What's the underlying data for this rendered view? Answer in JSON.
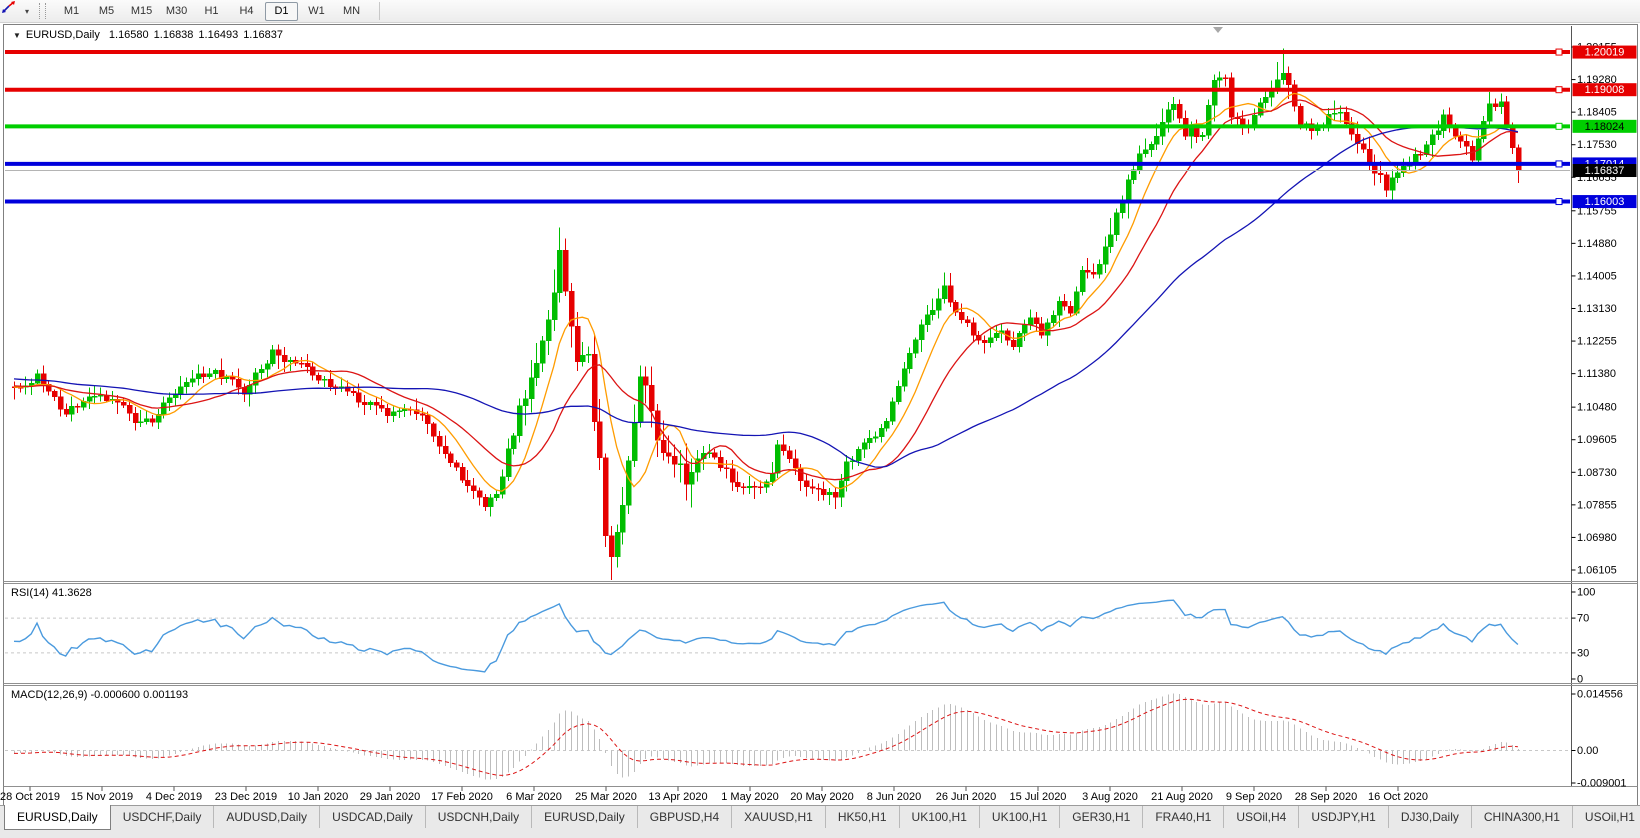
{
  "colors": {
    "bull": "#00bd00",
    "bear": "#e60000",
    "ma_fast": "#ff9c00",
    "ma_mid": "#dc1414",
    "ma_slow": "#1414b4",
    "level_red": "#e60000",
    "level_green": "#00ce00",
    "level_blue": "#0000dc",
    "current_line": "#b4b4b4",
    "current_badge": "#000000",
    "rsi_line": "#4a9ade",
    "macd_hist": "#bdbdbd",
    "macd_signal": "#dc1414",
    "dashed_level": "#c8c8c8",
    "axis_line": "#555555",
    "axis_text": "#000000",
    "window_border": "#808080"
  },
  "toolbar": {
    "tool_icon": "chart-cursor",
    "dropdown_icon": "▾",
    "timeframes": [
      "M1",
      "M5",
      "M15",
      "M30",
      "H1",
      "H4",
      "D1",
      "W1",
      "MN"
    ],
    "active_timeframe": "D1"
  },
  "chart_header": {
    "collapse_icon": "▼",
    "symbol": "EURUSD,Daily",
    "open": "1.16580",
    "high": "1.16838",
    "low": "1.16493",
    "close": "1.16837"
  },
  "price_axis": {
    "ticks": [
      "1.20155",
      "1.19280",
      "1.18405",
      "1.17530",
      "1.16655",
      "1.15755",
      "1.14880",
      "1.14005",
      "1.13130",
      "1.12255",
      "1.11380",
      "1.10480",
      "1.09605",
      "1.08730",
      "1.07855",
      "1.06980",
      "1.06105"
    ],
    "top_price": 1.20155,
    "bottom_price": 1.06105
  },
  "levels": [
    {
      "label": "1.20019",
      "price": 1.20019,
      "color_key": "level_red",
      "text_color": "#ffffff"
    },
    {
      "label": "1.19008",
      "price": 1.19008,
      "color_key": "level_red",
      "text_color": "#ffffff"
    },
    {
      "label": "1.18024",
      "price": 1.18024,
      "color_key": "level_green",
      "text_color": "#000000"
    },
    {
      "label": "1.17014",
      "price": 1.17014,
      "color_key": "level_blue",
      "text_color": "#ffffff"
    },
    {
      "label": "1.16003",
      "price": 1.16003,
      "color_key": "level_blue",
      "text_color": "#ffffff"
    }
  ],
  "current_price": {
    "label": "1.16837",
    "price": 1.16837
  },
  "rsi_pane": {
    "name": "RSI(14)",
    "value": "41.3628",
    "period": 14,
    "scale": [
      "100",
      "70",
      "30",
      "0"
    ],
    "scale_values": [
      100,
      70,
      30,
      0
    ],
    "dashed_levels": [
      70,
      30
    ]
  },
  "macd_pane": {
    "name": "MACD(12,26,9)",
    "values": "-0.000600 0.001193",
    "fast": 12,
    "slow": 26,
    "signal": 9,
    "scale": [
      "0.014556",
      "0.00",
      "-0.009001"
    ],
    "scale_numbers": [
      0.014556,
      0,
      -0.009001
    ]
  },
  "date_axis": [
    "28 Oct 2019",
    "15 Nov 2019",
    "4 Dec 2019",
    "23 Dec 2019",
    "10 Jan 2020",
    "29 Jan 2020",
    "17 Feb 2020",
    "6 Mar 2020",
    "25 Mar 2020",
    "13 Apr 2020",
    "1 May 2020",
    "20 May 2020",
    "8 Jun 2020",
    "26 Jun 2020",
    "15 Jul 2020",
    "3 Aug 2020",
    "21 Aug 2020",
    "9 Sep 2020",
    "28 Sep 2020",
    "16 Oct 2020"
  ],
  "chart_data": {
    "type": "candlestick",
    "symbol": "EURUSD",
    "timeframe": "Daily",
    "title": "EURUSD,Daily 1.16580 1.16838 1.16493 1.16837",
    "x_range": [
      "28 Oct 2019",
      "28 Oct 2020"
    ],
    "y_range": [
      1.06105,
      1.20155
    ],
    "candle_count": 263,
    "close_anchors": [
      [
        0,
        1.1095
      ],
      [
        4,
        1.1128
      ],
      [
        9,
        1.1032
      ],
      [
        13,
        1.1068
      ],
      [
        17,
        1.1078
      ],
      [
        21,
        1.1008
      ],
      [
        24,
        1.1016
      ],
      [
        27,
        1.1078
      ],
      [
        31,
        1.1132
      ],
      [
        35,
        1.1143
      ],
      [
        38,
        1.1118
      ],
      [
        40,
        1.109
      ],
      [
        44,
        1.1176
      ],
      [
        45,
        1.121
      ],
      [
        47,
        1.1172
      ],
      [
        50,
        1.116
      ],
      [
        53,
        1.1128
      ],
      [
        57,
        1.1098
      ],
      [
        61,
        1.1062
      ],
      [
        65,
        1.1024
      ],
      [
        69,
        1.1046
      ],
      [
        72,
        1.1002
      ],
      [
        75,
        1.0918
      ],
      [
        79,
        1.0842
      ],
      [
        82,
        1.079
      ],
      [
        84,
        1.0806
      ],
      [
        86,
        1.0928
      ],
      [
        88,
        1.1032
      ],
      [
        90,
        1.1135
      ],
      [
        93,
        1.1285
      ],
      [
        95,
        1.1448
      ],
      [
        96,
        1.1352
      ],
      [
        98,
        1.1186
      ],
      [
        100,
        1.1178
      ],
      [
        101,
        1.1002
      ],
      [
        102,
        1.092
      ],
      [
        103,
        1.0692
      ],
      [
        104,
        1.066
      ],
      [
        106,
        1.0792
      ],
      [
        108,
        1.1028
      ],
      [
        109,
        1.1138
      ],
      [
        111,
        1.1032
      ],
      [
        112,
        1.0966
      ],
      [
        114,
        1.0902
      ],
      [
        117,
        1.086
      ],
      [
        120,
        1.0934
      ],
      [
        122,
        1.0912
      ],
      [
        124,
        1.0872
      ],
      [
        127,
        1.0824
      ],
      [
        130,
        1.0832
      ],
      [
        132,
        1.088
      ],
      [
        133,
        1.0952
      ],
      [
        135,
        1.0906
      ],
      [
        138,
        1.0836
      ],
      [
        141,
        1.0812
      ],
      [
        143,
        1.0806
      ],
      [
        145,
        1.0898
      ],
      [
        148,
        1.0948
      ],
      [
        150,
        1.0978
      ],
      [
        152,
        1.1012
      ],
      [
        154,
        1.1108
      ],
      [
        157,
        1.1232
      ],
      [
        159,
        1.1288
      ],
      [
        162,
        1.1372
      ],
      [
        164,
        1.1302
      ],
      [
        167,
        1.1246
      ],
      [
        169,
        1.1212
      ],
      [
        172,
        1.125
      ],
      [
        174,
        1.122
      ],
      [
        177,
        1.1278
      ],
      [
        179,
        1.125
      ],
      [
        182,
        1.1328
      ],
      [
        184,
        1.1302
      ],
      [
        186,
        1.1402
      ],
      [
        189,
        1.1428
      ],
      [
        191,
        1.1518
      ],
      [
        194,
        1.1654
      ],
      [
        196,
        1.1718
      ],
      [
        199,
        1.1776
      ],
      [
        202,
        1.1862
      ],
      [
        204,
        1.1782
      ],
      [
        207,
        1.1792
      ],
      [
        209,
        1.1915
      ],
      [
        211,
        1.1928
      ],
      [
        212,
        1.184
      ],
      [
        214,
        1.1798
      ],
      [
        216,
        1.1832
      ],
      [
        219,
        1.1902
      ],
      [
        221,
        1.1938
      ],
      [
        222,
        1.1912
      ],
      [
        224,
        1.1822
      ],
      [
        226,
        1.1778
      ],
      [
        228,
        1.1812
      ],
      [
        231,
        1.1844
      ],
      [
        233,
        1.1792
      ],
      [
        236,
        1.1708
      ],
      [
        238,
        1.1662
      ],
      [
        239,
        1.1634
      ],
      [
        241,
        1.1682
      ],
      [
        244,
        1.1716
      ],
      [
        246,
        1.1742
      ],
      [
        249,
        1.1824
      ],
      [
        251,
        1.1782
      ],
      [
        253,
        1.1742
      ],
      [
        254,
        1.172
      ],
      [
        255,
        1.1768
      ],
      [
        257,
        1.186
      ],
      [
        259,
        1.1858
      ],
      [
        260,
        1.1812
      ],
      [
        261,
        1.1752
      ],
      [
        262,
        1.16837
      ]
    ],
    "spike_highs": [
      [
        95,
        1.1495
      ],
      [
        221,
        1.2011
      ]
    ],
    "spike_lows": [
      [
        104,
        1.0636
      ],
      [
        239,
        1.1612
      ],
      [
        262,
        1.165
      ]
    ],
    "last_close": 1.16837,
    "moving_averages": [
      {
        "name": "MA fast",
        "period": 8,
        "color_key": "ma_fast"
      },
      {
        "name": "MA mid",
        "period": 17,
        "color_key": "ma_mid"
      },
      {
        "name": "MA slow",
        "period": 50,
        "color_key": "ma_slow"
      }
    ]
  },
  "tabs": {
    "items": [
      "EURUSD,Daily",
      "USDCHF,Daily",
      "AUDUSD,Daily",
      "USDCAD,Daily",
      "USDCNH,Daily",
      "EURUSD,Daily",
      "GBPUSD,H4",
      "XAUUSD,H1",
      "HK50,H1",
      "UK100,H1",
      "UK100,H1",
      "GER30,H1",
      "FRA40,H1",
      "USOil,H4",
      "USDJPY,H1",
      "DJ30,Daily",
      "CHINA300,H1",
      "USOil,H1"
    ],
    "active_index": 0,
    "scroll_left_icon": "◂",
    "scroll_right_icon": "▸"
  }
}
